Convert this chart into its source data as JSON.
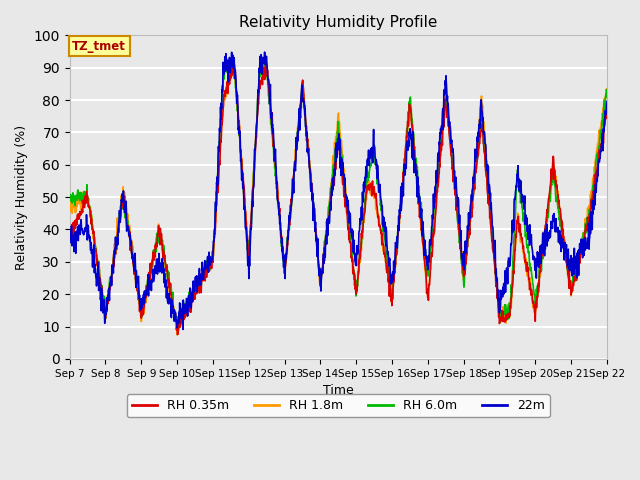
{
  "title": "Relativity Humidity Profile",
  "xlabel": "Time",
  "ylabel": "Relativity Humidity (%)",
  "ylim": [
    0,
    100
  ],
  "yticks": [
    0,
    10,
    20,
    30,
    40,
    50,
    60,
    70,
    80,
    90,
    100
  ],
  "plot_bg_color": "#e8e8e8",
  "grid_color": "white",
  "line_colors": {
    "RH 0.35m": "#dd0000",
    "RH 1.8m": "#ff9900",
    "RH 6.0m": "#00bb00",
    "22m": "#0000cc"
  },
  "legend_label": "TZ_tmet",
  "legend_box_color": "#ffff99",
  "legend_box_edge": "#cc8800",
  "line_width": 1.2,
  "figsize": [
    6.4,
    4.8
  ],
  "dpi": 100,
  "x_tick_labels": [
    "Sep 7",
    "Sep 8",
    "Sep 9",
    "Sep 10",
    "Sep 11",
    "Sep 12",
    "Sep 13",
    "Sep 14",
    "Sep 15",
    "Sep 16",
    "Sep 17",
    "Sep 18",
    "Sep 19",
    "Sep 20",
    "Sep 21",
    "Sep 22"
  ]
}
